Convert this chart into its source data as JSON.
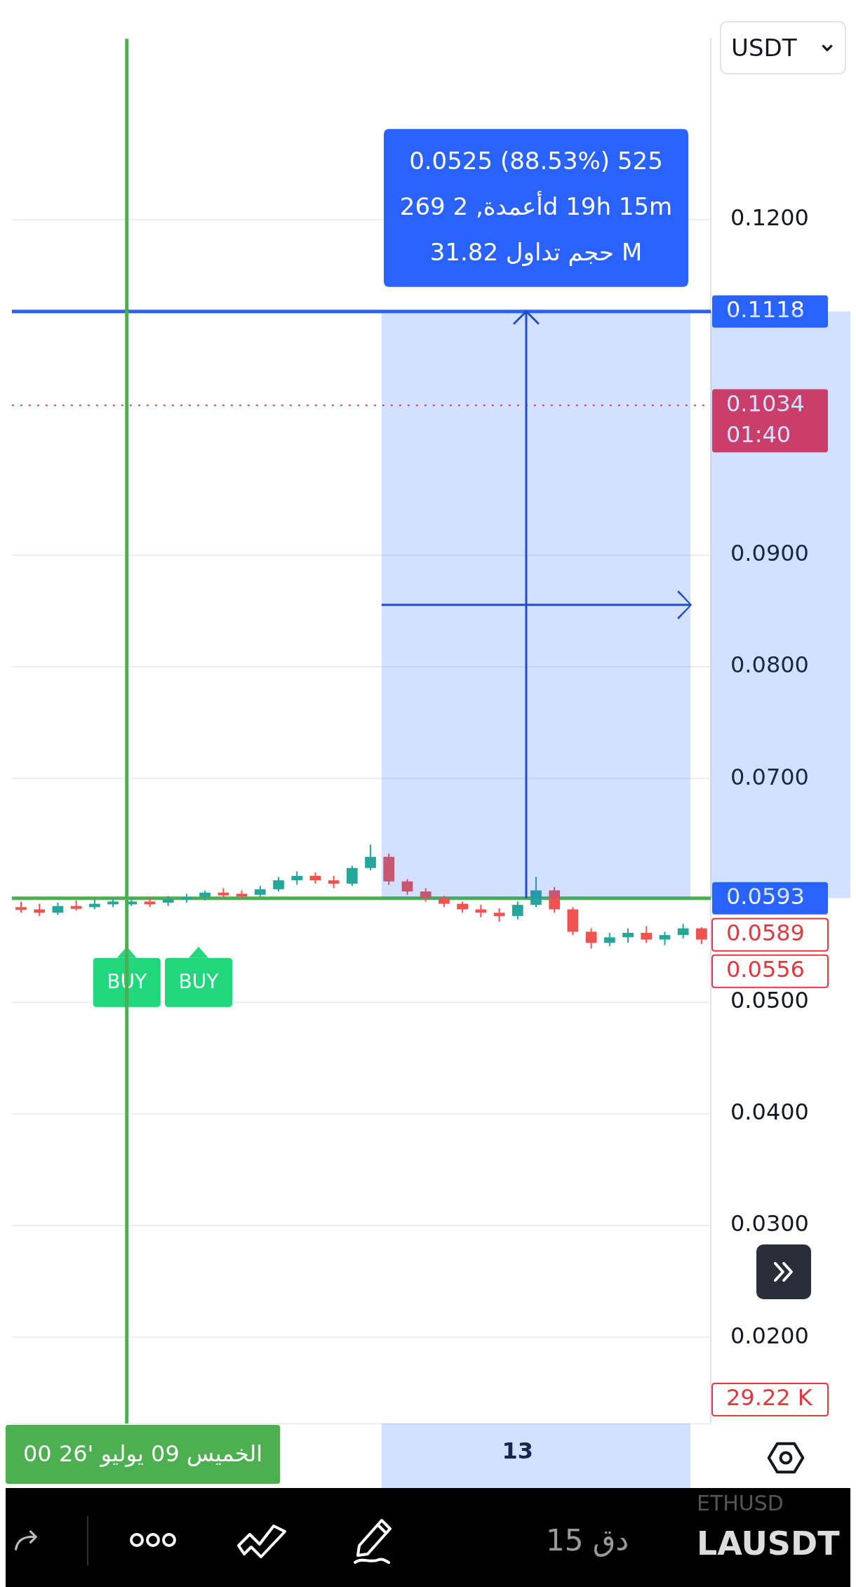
{
  "chart_data": {
    "type": "candlestick",
    "title": "LAUSDT",
    "categories": [
      null,
      null,
      null,
      null,
      null,
      null,
      null,
      null,
      null,
      null,
      null,
      null,
      null,
      null,
      null,
      null,
      null,
      null,
      null,
      null,
      null,
      null,
      null,
      null,
      null,
      null,
      null,
      "13",
      null,
      null,
      null,
      null,
      null,
      null,
      null,
      null,
      null,
      null
    ],
    "ohlc": [
      [
        0.0585,
        0.059,
        0.058,
        0.0583
      ],
      [
        0.0583,
        0.0588,
        0.0577,
        0.058
      ],
      [
        0.058,
        0.0589,
        0.0578,
        0.0586
      ],
      [
        0.0586,
        0.0591,
        0.0582,
        0.0585
      ],
      [
        0.0585,
        0.0592,
        0.0583,
        0.0588
      ],
      [
        0.0588,
        0.0593,
        0.0585,
        0.059
      ],
      [
        0.059,
        0.0594,
        0.0586,
        0.059
      ],
      [
        0.059,
        0.0594,
        0.0585,
        0.0589
      ],
      [
        0.0589,
        0.0595,
        0.0586,
        0.0592
      ],
      [
        0.0592,
        0.0597,
        0.0589,
        0.0594
      ],
      [
        0.0594,
        0.06,
        0.0591,
        0.0598
      ],
      [
        0.0598,
        0.0602,
        0.0592,
        0.0597
      ],
      [
        0.0597,
        0.06,
        0.0592,
        0.0596
      ],
      [
        0.0596,
        0.0604,
        0.0594,
        0.0601
      ],
      [
        0.0601,
        0.0612,
        0.0599,
        0.0609
      ],
      [
        0.0609,
        0.0617,
        0.0605,
        0.0613
      ],
      [
        0.0613,
        0.0616,
        0.0606,
        0.0609
      ],
      [
        0.0609,
        0.0613,
        0.0602,
        0.0606
      ],
      [
        0.0606,
        0.0622,
        0.0604,
        0.062
      ],
      [
        0.062,
        0.0641,
        0.0618,
        0.063
      ],
      [
        0.063,
        0.0633,
        0.0605,
        0.0608
      ],
      [
        0.0608,
        0.061,
        0.0596,
        0.0599
      ],
      [
        0.0599,
        0.0602,
        0.059,
        0.0593
      ],
      [
        0.0593,
        0.0595,
        0.0585,
        0.0588
      ],
      [
        0.0588,
        0.059,
        0.058,
        0.0583
      ],
      [
        0.0583,
        0.0587,
        0.0576,
        0.058
      ],
      [
        0.058,
        0.0584,
        0.0572,
        0.0577
      ],
      [
        0.0577,
        0.059,
        0.0574,
        0.0587
      ],
      [
        0.0587,
        0.0612,
        0.0585,
        0.06
      ],
      [
        0.06,
        0.0603,
        0.058,
        0.0583
      ],
      [
        0.0583,
        0.0585,
        0.056,
        0.0563
      ],
      [
        0.0563,
        0.0566,
        0.0548,
        0.0553
      ],
      [
        0.0553,
        0.0562,
        0.055,
        0.0558
      ],
      [
        0.0558,
        0.0566,
        0.0553,
        0.0562
      ],
      [
        0.0562,
        0.0568,
        0.0553,
        0.0556
      ],
      [
        0.0556,
        0.0563,
        0.0551,
        0.056
      ],
      [
        0.056,
        0.057,
        0.0557,
        0.0566
      ],
      [
        0.0566,
        0.0567,
        0.0552,
        0.0556
      ]
    ],
    "ylim": [
      0.0123,
      0.1362
    ],
    "yticks": [
      {
        "value": 0.02,
        "label": "0.0200"
      },
      {
        "value": 0.03,
        "label": "0.0300"
      },
      {
        "value": 0.04,
        "label": "0.0400"
      },
      {
        "value": 0.05,
        "label": "0.0500"
      },
      {
        "value": 0.07,
        "label": "0.0700"
      },
      {
        "value": 0.08,
        "label": "0.0800"
      },
      {
        "value": 0.09,
        "label": "0.0900"
      },
      {
        "value": 0.12,
        "label": "0.1200"
      }
    ],
    "grid": "y",
    "ref_lines": [
      {
        "axis": "y",
        "value": 0.1118,
        "label": "0.1118",
        "color": "#2962ff"
      },
      {
        "axis": "y",
        "value": 0.1034,
        "label": "0.1034",
        "color": "#f23645",
        "line_style": "dotted"
      },
      {
        "axis": "y",
        "value": 0.0593,
        "label": "0.0593",
        "color": "#4caf50"
      }
    ],
    "annotations": [
      "0.0525 (88.53%) 525",
      "269 أعمدة, 2d 19h 15m",
      "31.82 حجم تداول M",
      "BUY",
      "BUY",
      "0.0589",
      "0.0556",
      "01:40",
      "29.22 K",
      "USDT",
      "15 دق",
      "ETHUSD",
      "الخميس 09 يوليو '26 00"
    ]
  }
}
